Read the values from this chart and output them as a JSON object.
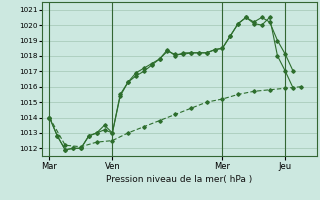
{
  "title": "Pression niveau de la mer( hPa )",
  "background_color": "#cce8e0",
  "grid_color": "#aaccbb",
  "line_color": "#2d6e2d",
  "ylim": [
    1011.5,
    1021.5
  ],
  "yticks": [
    1012,
    1013,
    1014,
    1015,
    1016,
    1017,
    1018,
    1019,
    1020,
    1021
  ],
  "day_labels": [
    "Mar",
    "Ven",
    "Mer",
    "Jeu"
  ],
  "day_positions": [
    0,
    8,
    22,
    30
  ],
  "xlim": [
    -1,
    34
  ],
  "line1_x": [
    0,
    1,
    2,
    3,
    4,
    5,
    6,
    7,
    8,
    9,
    10,
    11,
    12,
    13,
    14,
    15,
    16,
    17,
    18,
    19,
    20,
    21,
    22,
    23,
    24,
    25,
    26,
    27,
    28,
    29,
    30,
    31
  ],
  "line1_y": [
    1014.0,
    1012.8,
    1011.9,
    1012.0,
    1012.0,
    1012.8,
    1013.0,
    1013.5,
    1013.0,
    1015.5,
    1016.3,
    1016.7,
    1017.0,
    1017.4,
    1017.8,
    1018.3,
    1018.1,
    1018.1,
    1018.2,
    1018.2,
    1018.2,
    1018.4,
    1018.5,
    1019.3,
    1020.1,
    1020.5,
    1020.2,
    1020.5,
    1020.2,
    1019.0,
    1018.1,
    1017.0
  ],
  "line2_x": [
    0,
    1,
    2,
    3,
    4,
    5,
    6,
    7,
    8,
    9,
    10,
    11,
    12,
    13,
    14,
    15,
    16,
    17,
    18,
    19,
    20,
    21,
    22,
    23,
    24,
    25,
    26,
    27,
    28,
    29,
    30,
    31
  ],
  "line2_y": [
    1014.0,
    1012.8,
    1011.9,
    1012.0,
    1012.0,
    1012.8,
    1013.0,
    1013.2,
    1013.0,
    1015.4,
    1016.3,
    1016.9,
    1017.2,
    1017.5,
    1017.8,
    1018.4,
    1018.0,
    1018.2,
    1018.2,
    1018.2,
    1018.2,
    1018.4,
    1018.5,
    1019.3,
    1020.1,
    1020.5,
    1020.1,
    1020.0,
    1020.5,
    1018.0,
    1017.0,
    1015.9
  ],
  "line3_x": [
    0,
    2,
    4,
    6,
    8,
    10,
    12,
    14,
    16,
    18,
    20,
    22,
    24,
    26,
    28,
    30,
    32
  ],
  "line3_y": [
    1014.0,
    1012.2,
    1012.1,
    1012.4,
    1012.5,
    1013.0,
    1013.4,
    1013.8,
    1014.2,
    1014.6,
    1015.0,
    1015.2,
    1015.5,
    1015.7,
    1015.8,
    1015.9,
    1016.0
  ]
}
